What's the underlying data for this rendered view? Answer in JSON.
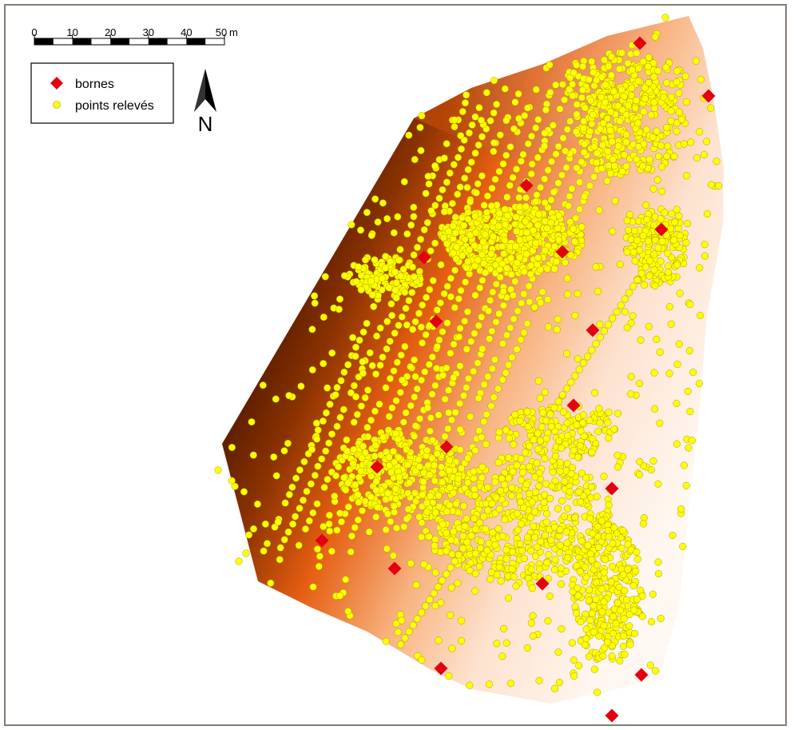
{
  "scale_bar": {
    "ticks": [
      "0",
      "10",
      "20",
      "30",
      "40",
      "50"
    ],
    "unit": "m"
  },
  "legend": {
    "items": [
      {
        "label": "bornes",
        "symbol": "red-diamond",
        "color": "#e3000f"
      },
      {
        "label": "points relevés",
        "symbol": "yellow-circle",
        "color": "#ffff00"
      }
    ]
  },
  "north_arrow": {
    "label": "N"
  },
  "colors": {
    "frame": "#847b72",
    "terrain_dark": "#6b2200",
    "terrain_mid": "#e0601c",
    "terrain_light": "#fff4ec",
    "survey_point": "#ffff00",
    "survey_point_stroke": "#a89a00",
    "borne": "#e3000f"
  }
}
